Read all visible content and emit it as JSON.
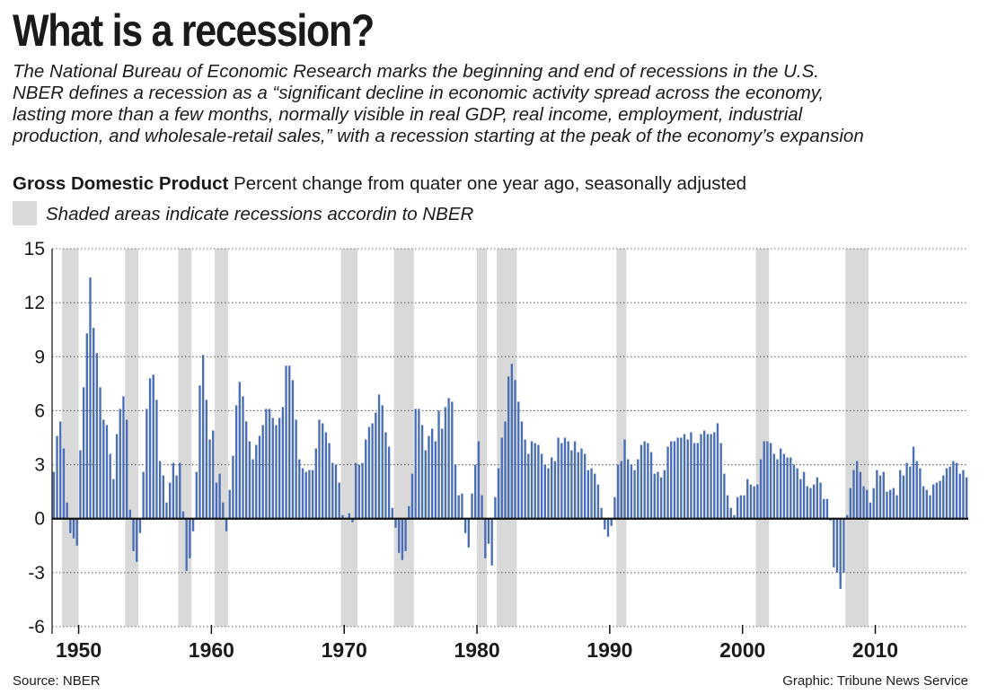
{
  "title": "What is a recession?",
  "description": [
    "The National Bureau of Economic Research marks the beginning and end of recessions in the U.S.",
    "NBER defines a recession as a “significant decline in economic activity spread across the economy,",
    "lasting more than a few months, normally visible in real GDP, real income, employment, industrial",
    "production, and wholesale-retail sales,” with a recession starting at the peak of the economy’s expansion"
  ],
  "subhead": {
    "bold": "Gross Domestic Product",
    "rest": "Percent change from quater one year ago, seasonally adjusted"
  },
  "legend": {
    "shaded": "Shaded areas indicate recessions accordin to NBER"
  },
  "source": "Source: NBER",
  "credit": "Graphic: Tribune News Service",
  "colors": {
    "bar": "#4a6fb8",
    "recession": "#d9d9d9",
    "gridline": "#6d6d6d",
    "zero_line": "#111111",
    "text": "#1a1a1a"
  },
  "chart_data": {
    "type": "bar",
    "series": [
      {
        "name": "Gross Domestic Product",
        "unit": "Percent change from quater one year ago"
      }
    ],
    "start_period": "1948-Q1",
    "frequency": "quarterly",
    "ylim": [
      -6,
      15
    ],
    "yticks": [
      15,
      12,
      9,
      6,
      3,
      0,
      -3,
      -6
    ],
    "xticks": [
      "1950",
      "1960",
      "1970",
      "1980",
      "1990",
      "2000",
      "2010"
    ],
    "grid": true,
    "recessions": [
      [
        "1948-Q4",
        "1949-Q4"
      ],
      [
        "1953-Q3",
        "1954-Q2"
      ],
      [
        "1957-Q3",
        "1958-Q2"
      ],
      [
        "1960-Q2",
        "1961-Q1"
      ],
      [
        "1969-Q4",
        "1970-Q4"
      ],
      [
        "1973-Q4",
        "1975-Q1"
      ],
      [
        "1980-Q1",
        "1980-Q3"
      ],
      [
        "1981-Q3",
        "1982-Q4"
      ],
      [
        "1990-Q3",
        "1991-Q1"
      ],
      [
        "2001-Q1",
        "2001-Q4"
      ],
      [
        "2007-Q4",
        "2009-Q2"
      ]
    ],
    "values": [
      2.6,
      4.6,
      5.4,
      3.9,
      0.9,
      -0.8,
      -1.1,
      -1.5,
      3.8,
      7.3,
      10.3,
      13.4,
      10.6,
      9.2,
      7.3,
      5.5,
      5.2,
      3.6,
      2.2,
      4.7,
      6.1,
      6.8,
      5.5,
      0.5,
      -1.8,
      -2.4,
      -0.8,
      2.6,
      6.1,
      7.8,
      8.0,
      6.6,
      3.2,
      2.4,
      0.9,
      2.0,
      3.1,
      2.4,
      3.1,
      0.4,
      -2.9,
      -2.2,
      -0.7,
      2.6,
      7.4,
      9.1,
      6.6,
      4.4,
      4.9,
      2.0,
      2.5,
      0.9,
      -0.7,
      1.6,
      3.5,
      6.3,
      7.6,
      6.8,
      5.4,
      4.3,
      3.3,
      4.1,
      4.6,
      5.2,
      6.1,
      6.1,
      5.6,
      5.2,
      5.6,
      6.2,
      8.5,
      8.5,
      7.7,
      5.5,
      3.3,
      2.8,
      2.6,
      2.7,
      2.7,
      3.9,
      5.5,
      5.3,
      4.8,
      4.2,
      3.1,
      3.0,
      2.0,
      0.2,
      0.0,
      0.3,
      -0.2,
      3.1,
      3.0,
      3.1,
      4.4,
      5.1,
      5.3,
      5.9,
      6.9,
      6.3,
      4.8,
      4.0,
      0.6,
      -0.5,
      -1.9,
      -2.3,
      -1.8,
      0.7,
      2.5,
      6.1,
      6.1,
      5.2,
      3.8,
      4.6,
      5.0,
      4.3,
      6.0,
      5.0,
      6.2,
      6.7,
      6.5,
      3.0,
      1.3,
      1.4,
      -0.8,
      -1.6,
      1.4,
      3.0,
      4.3,
      1.3,
      -2.2,
      -1.4,
      -2.6,
      1.2,
      2.8,
      4.5,
      5.4,
      7.9,
      8.6,
      7.7,
      6.5,
      5.4,
      4.4,
      3.6,
      4.3,
      4.2,
      4.1,
      3.6,
      3.0,
      2.8,
      3.4,
      3.2,
      4.5,
      4.2,
      4.5,
      4.3,
      3.8,
      4.3,
      3.7,
      3.9,
      3.6,
      2.7,
      2.8,
      2.5,
      1.9,
      0.6,
      -0.6,
      -1.0,
      -0.4,
      1.2,
      3.0,
      3.2,
      4.4,
      3.3,
      3.0,
      2.7,
      3.3,
      4.1,
      4.3,
      4.2,
      3.7,
      2.5,
      2.6,
      2.3,
      2.7,
      4.0,
      4.3,
      4.3,
      4.5,
      4.5,
      4.7,
      4.4,
      4.8,
      4.2,
      4.2,
      4.7,
      4.9,
      4.7,
      4.7,
      4.8,
      5.3,
      4.2,
      2.5,
      1.3,
      0.6,
      0.2,
      1.2,
      1.3,
      1.3,
      2.2,
      1.9,
      1.8,
      1.9,
      3.3,
      4.3,
      4.3,
      4.2,
      3.6,
      3.3,
      3.9,
      3.6,
      3.4,
      3.4,
      3.0,
      2.8,
      2.2,
      2.6,
      1.8,
      1.7,
      1.9,
      2.3,
      2.0,
      1.1,
      1.1,
      -0.1,
      -2.7,
      -3.0,
      -3.9,
      -3.0,
      0.2,
      1.7,
      2.7,
      3.2,
      2.6,
      1.8,
      1.6,
      0.9,
      1.7,
      2.7,
      2.4,
      2.6,
      1.5,
      1.6,
      1.7,
      1.3,
      2.7,
      2.4,
      3.1,
      2.9,
      4.0,
      3.2,
      2.8,
      1.8,
      1.6,
      1.3,
      1.9,
      2.0,
      2.1,
      2.4,
      2.8,
      2.9,
      3.2,
      3.1,
      2.5,
      2.7,
      2.3
    ]
  }
}
